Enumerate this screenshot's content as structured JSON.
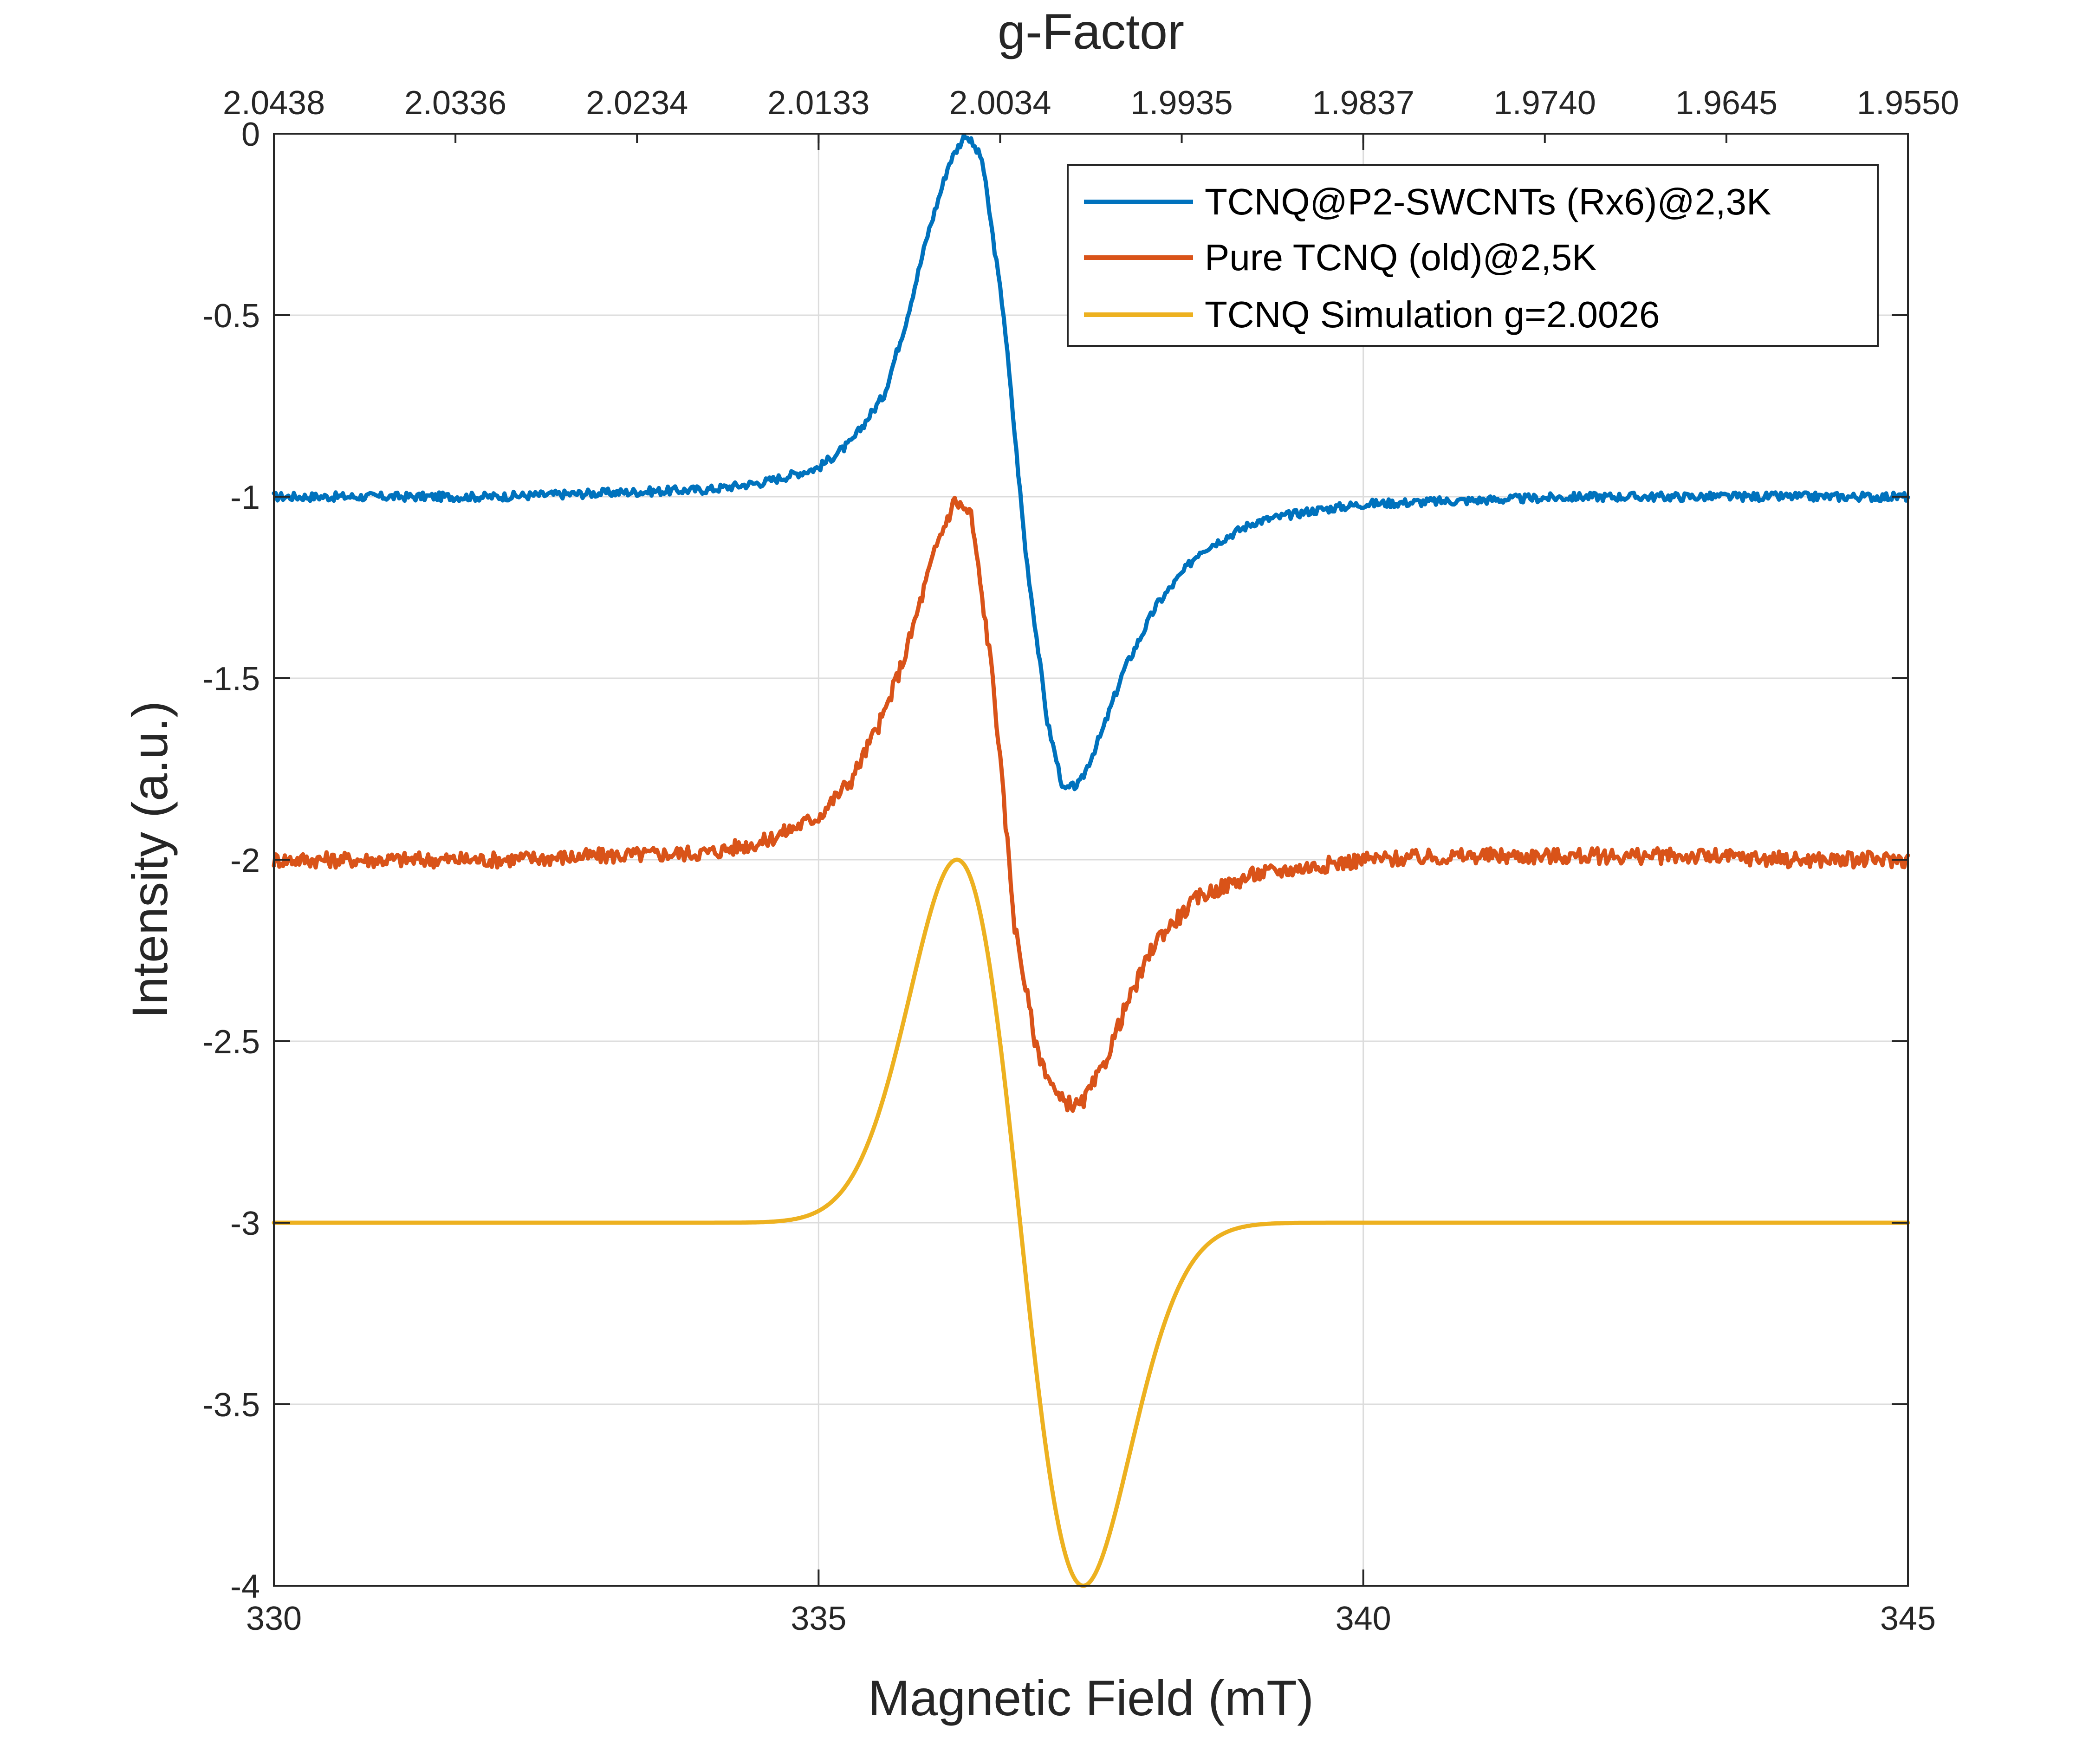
{
  "chart_data": {
    "type": "line",
    "title": "",
    "xlabel": "Magnetic Field (mT)",
    "ylabel": "Intensity (a.u.)",
    "top_axis_label": "g-Factor",
    "xlim": [
      330,
      345
    ],
    "ylim": [
      -4,
      0
    ],
    "grid": true,
    "legend_position": "top-right",
    "x_ticks": [
      "330",
      "335",
      "340",
      "345"
    ],
    "y_ticks": [
      "0",
      "-0.5",
      "-1",
      "-1.5",
      "-2",
      "-2.5",
      "-3",
      "-3.5",
      "-4"
    ],
    "top_ticks": [
      "2.0438",
      "2.0336",
      "2.0234",
      "2.0133",
      "2.0034",
      "1.9935",
      "1.9837",
      "1.9740",
      "1.9645",
      "1.9550"
    ],
    "series": [
      {
        "name": "TCNQ@P2-SWCNTs (Rx6)@2,3K",
        "color": "#0072BD",
        "x": [
          330,
          331,
          332,
          333,
          334,
          334.5,
          335,
          335.3,
          335.6,
          335.8,
          336.0,
          336.2,
          336.35,
          336.5,
          336.7,
          336.9,
          337.1,
          337.25,
          337.4,
          337.6,
          337.8,
          338.1,
          338.5,
          339,
          339.5,
          340,
          341,
          342,
          343,
          344,
          345
        ],
        "values": [
          -1.0,
          -1.0,
          -1.0,
          -0.99,
          -0.98,
          -0.96,
          -0.92,
          -0.85,
          -0.72,
          -0.52,
          -0.28,
          -0.08,
          0.0,
          -0.07,
          -0.5,
          -1.15,
          -1.62,
          -1.81,
          -1.79,
          -1.65,
          -1.48,
          -1.3,
          -1.15,
          -1.07,
          -1.04,
          -1.02,
          -1.01,
          -1.0,
          -1.0,
          -1.0,
          -1.0
        ],
        "noise_amplitude": 0.012
      },
      {
        "name": "Pure TCNQ (old)@2,5K",
        "color": "#D95319",
        "x": [
          330,
          331,
          332,
          333,
          334,
          334.5,
          335,
          335.3,
          335.6,
          335.8,
          336.0,
          336.1,
          336.25,
          336.4,
          336.6,
          336.8,
          337.0,
          337.2,
          337.4,
          337.6,
          337.8,
          338.1,
          338.5,
          339,
          339.5,
          340,
          341,
          342,
          343,
          344,
          345
        ],
        "values": [
          -2.0,
          -2.0,
          -2.0,
          -1.99,
          -1.98,
          -1.95,
          -1.88,
          -1.78,
          -1.6,
          -1.43,
          -1.22,
          -1.12,
          -1.01,
          -1.05,
          -1.5,
          -2.18,
          -2.52,
          -2.66,
          -2.68,
          -2.58,
          -2.42,
          -2.22,
          -2.1,
          -2.04,
          -2.02,
          -2.0,
          -1.99,
          -1.99,
          -1.99,
          -2.0,
          -2.0
        ],
        "noise_amplitude": 0.022
      },
      {
        "name": "TCNQ Simulation g=2.0026",
        "color": "#EDB120",
        "model": "gaussian_derivative",
        "baseline": -3.0,
        "center": 336.85,
        "sigma": 0.58,
        "peak_to_peak": 2.0,
        "max_point": [
          336.27,
          -2.0
        ],
        "min_point": [
          337.43,
          -4.0
        ]
      }
    ]
  }
}
